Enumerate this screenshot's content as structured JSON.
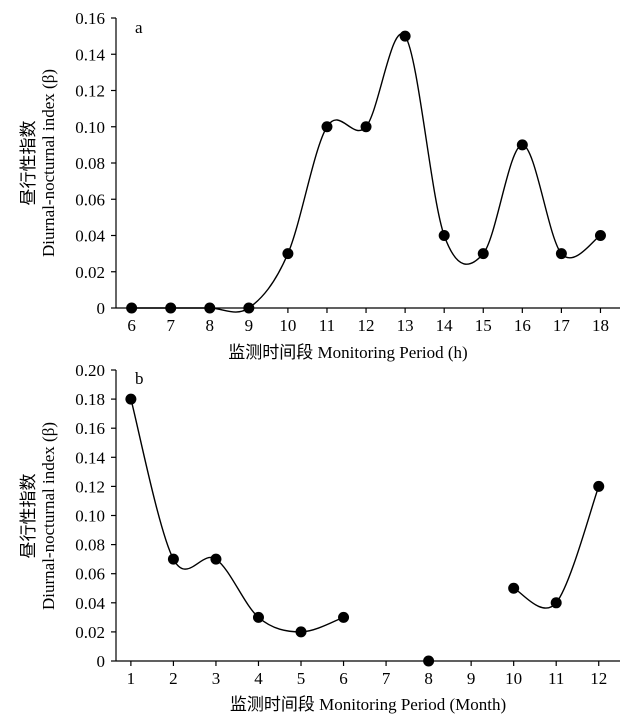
{
  "chart_data": [
    {
      "type": "scatter",
      "panel_label": "a",
      "xlabel": "监测时间段 Monitoring Period (h)",
      "ylabel_lines": [
        "昼行性指数",
        "Diurnal-nocturnal index (β)"
      ],
      "x_ticks": [
        6,
        7,
        8,
        9,
        10,
        11,
        12,
        13,
        14,
        15,
        16,
        17,
        18
      ],
      "xlim": [
        5.6,
        18.5
      ],
      "ylim": [
        0,
        0.16
      ],
      "y_ticks": [
        0,
        0.02,
        0.04,
        0.06,
        0.08,
        0.1,
        0.12,
        0.14,
        0.16
      ],
      "y_tick_labels": [
        "0",
        "0.02",
        "0.04",
        "0.06",
        "0.08",
        "0.10",
        "0.12",
        "0.14",
        "0.16"
      ],
      "grid": false,
      "curve": "smooth",
      "series": [
        {
          "segments": [
            {
              "x": [
                6,
                7,
                8,
                9,
                10,
                11,
                12,
                13,
                14,
                15,
                16,
                17,
                18
              ],
              "y": [
                0,
                0,
                0,
                0,
                0.03,
                0.1,
                0.1,
                0.15,
                0.04,
                0.03,
                0.09,
                0.03,
                0.04
              ]
            }
          ]
        }
      ]
    },
    {
      "type": "scatter",
      "panel_label": "b",
      "xlabel": "监测时间段 Monitoring Period (Month)",
      "ylabel_lines": [
        "昼行性指数",
        "Diurnal-nocturnal index (β)"
      ],
      "x_ticks": [
        1,
        2,
        3,
        4,
        5,
        6,
        7,
        8,
        9,
        10,
        11,
        12
      ],
      "xlim": [
        0.65,
        12.5
      ],
      "ylim": [
        0,
        0.2
      ],
      "y_ticks": [
        0,
        0.02,
        0.04,
        0.06,
        0.08,
        0.1,
        0.12,
        0.14,
        0.16,
        0.18,
        0.2
      ],
      "y_tick_labels": [
        "0",
        "0.02",
        "0.04",
        "0.06",
        "0.08",
        "0.10",
        "0.12",
        "0.14",
        "0.16",
        "0.18",
        "0.20"
      ],
      "grid": false,
      "curve": "smooth",
      "series": [
        {
          "segments": [
            {
              "x": [
                1,
                2,
                3,
                4,
                5,
                6
              ],
              "y": [
                0.18,
                0.07,
                0.07,
                0.03,
                0.02,
                0.03
              ]
            },
            {
              "x": [
                8
              ],
              "y": [
                0
              ]
            },
            {
              "x": [
                10,
                11,
                12
              ],
              "y": [
                0.05,
                0.04,
                0.12
              ]
            }
          ]
        }
      ]
    }
  ]
}
